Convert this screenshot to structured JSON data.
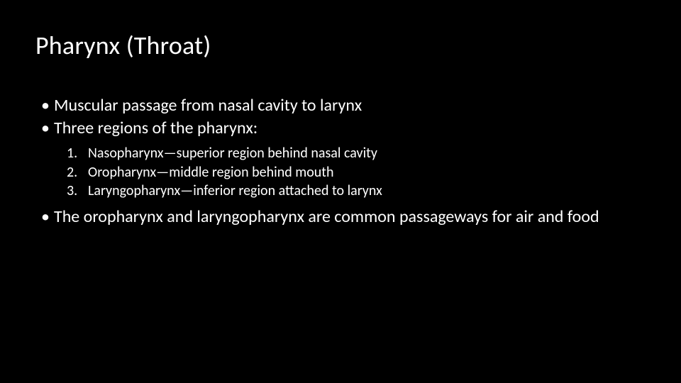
{
  "slide": {
    "background_color": "#000000",
    "text_color": "#ffffff",
    "font_family": "Calibri",
    "title": {
      "text": "Pharynx (Throat)",
      "fontsize": 36,
      "font_weight": 400
    },
    "bullets": [
      {
        "text": "Muscular passage from nasal cavity to larynx"
      },
      {
        "text": "Three regions of the pharynx:"
      }
    ],
    "numbered": [
      {
        "num": "1.",
        "text": "Nasopharynx—superior region behind nasal cavity"
      },
      {
        "num": "2.",
        "text": "Oropharynx—middle region behind mouth"
      },
      {
        "num": "3.",
        "text": "Laryngopharynx—inferior region attached to larynx"
      }
    ],
    "bullets_after": [
      {
        "text": "The oropharynx and laryngopharynx are common passageways for air and food"
      }
    ],
    "bullet_fontsize": 24,
    "numbered_fontsize": 20
  }
}
